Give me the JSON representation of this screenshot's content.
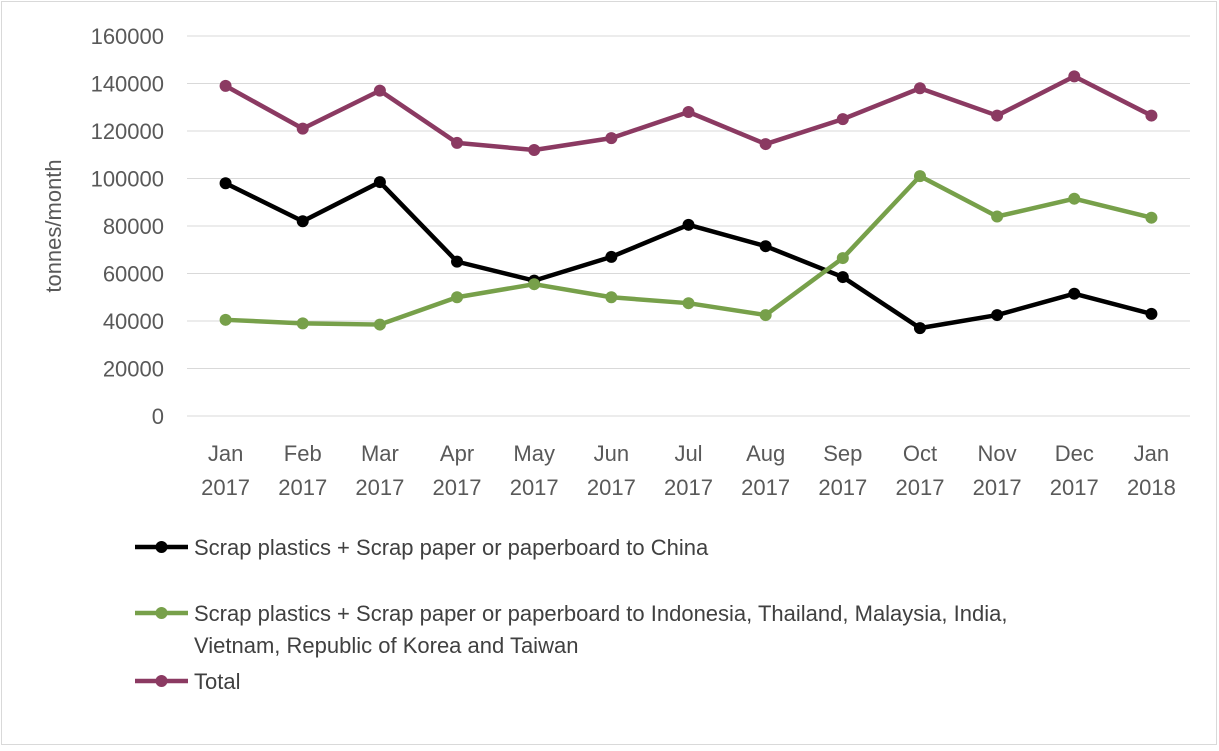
{
  "chart_data": {
    "type": "line",
    "title": "",
    "xlabel": "",
    "ylabel": "tonnes/month",
    "ylim": [
      0,
      160000
    ],
    "yticks": [
      0,
      20000,
      40000,
      60000,
      80000,
      100000,
      120000,
      140000,
      160000
    ],
    "ytick_labels": [
      "0",
      "20000",
      "40000",
      "60000",
      "80000",
      "100000",
      "120000",
      "140000",
      "160000"
    ],
    "grid": true,
    "legend_position": "bottom",
    "categories": [
      [
        "Jan",
        "2017"
      ],
      [
        "Feb",
        "2017"
      ],
      [
        "Mar",
        "2017"
      ],
      [
        "Apr",
        "2017"
      ],
      [
        "May",
        "2017"
      ],
      [
        "Jun",
        "2017"
      ],
      [
        "Jul",
        "2017"
      ],
      [
        "Aug",
        "2017"
      ],
      [
        "Sep",
        "2017"
      ],
      [
        "Oct",
        "2017"
      ],
      [
        "Nov",
        "2017"
      ],
      [
        "Dec",
        "2017"
      ],
      [
        "Jan",
        "2018"
      ]
    ],
    "series": [
      {
        "name": "Scrap plastics + Scrap paper or paperboard to China",
        "color": "#000000",
        "values": [
          98000,
          82000,
          98500,
          65000,
          57000,
          67000,
          80500,
          71500,
          58500,
          37000,
          42500,
          51500,
          43000
        ]
      },
      {
        "name": "Scrap plastics + Scrap paper or paperboard to Indonesia, Thailand, Malaysia, India, Vietnam, Republic of Korea and Taiwan",
        "legend_lines": [
          "Scrap plastics + Scrap paper or paperboard to Indonesia, Thailand, Malaysia, India,",
          "Vietnam, Republic of Korea and Taiwan"
        ],
        "color": "#77a04a",
        "values": [
          40500,
          39000,
          38500,
          50000,
          55500,
          50000,
          47500,
          42500,
          66500,
          101000,
          84000,
          91500,
          83500
        ]
      },
      {
        "name": "Total",
        "color": "#8b3a62",
        "values": [
          139000,
          121000,
          137000,
          115000,
          112000,
          117000,
          128000,
          114500,
          125000,
          138000,
          126500,
          143000,
          126500
        ]
      }
    ]
  }
}
